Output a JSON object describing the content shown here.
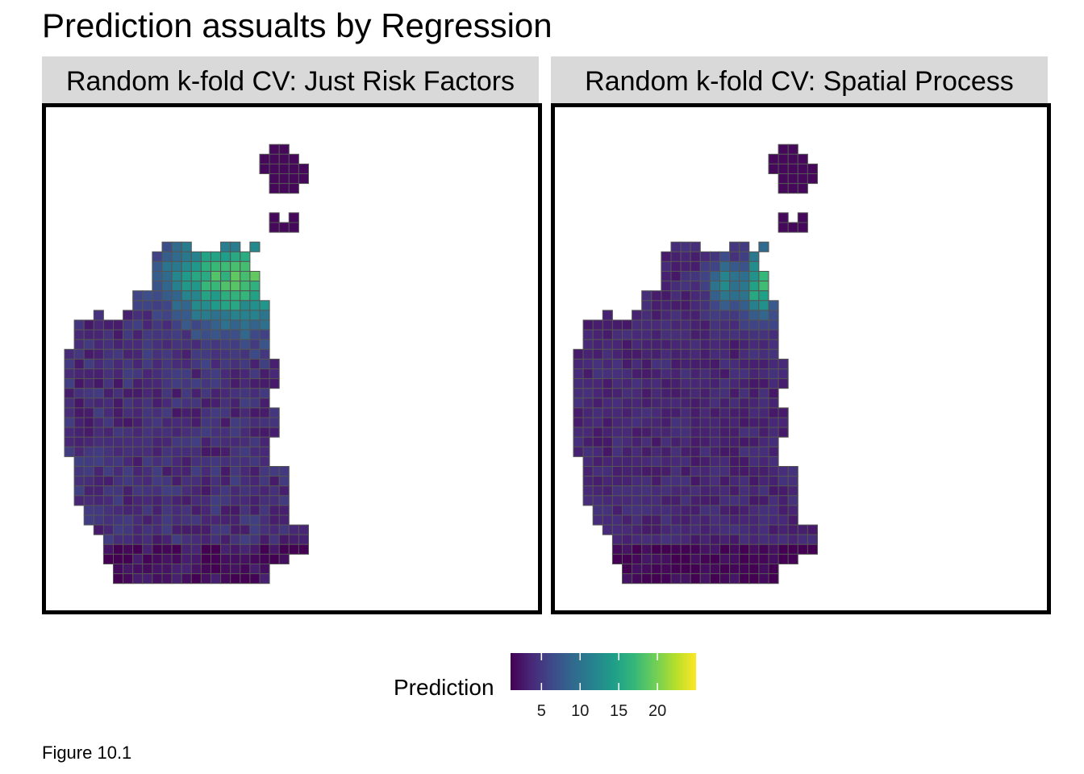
{
  "title": "Prediction assualts by Regression",
  "panels": [
    {
      "label": "Random k-fold CV: Just Risk Factors",
      "model": "risk"
    },
    {
      "label": "Random k-fold CV: Spatial Process",
      "model": "spatial"
    }
  ],
  "legend": {
    "title": "Prediction",
    "ticks": [
      {
        "value": 5,
        "label": "5"
      },
      {
        "value": 10,
        "label": "10"
      },
      {
        "value": 15,
        "label": "15"
      },
      {
        "value": 20,
        "label": "20"
      }
    ],
    "min": 1,
    "max": 25,
    "palette": [
      "#440154",
      "#482878",
      "#3e4989",
      "#31688e",
      "#26828e",
      "#1f9e89",
      "#35b779",
      "#6ece58",
      "#b5de2b",
      "#fde725"
    ]
  },
  "caption": "Figure 10.1",
  "colors": {
    "grid_stroke": "#555555",
    "frame": "#000000",
    "strip": "#d9d9d9"
  }
}
